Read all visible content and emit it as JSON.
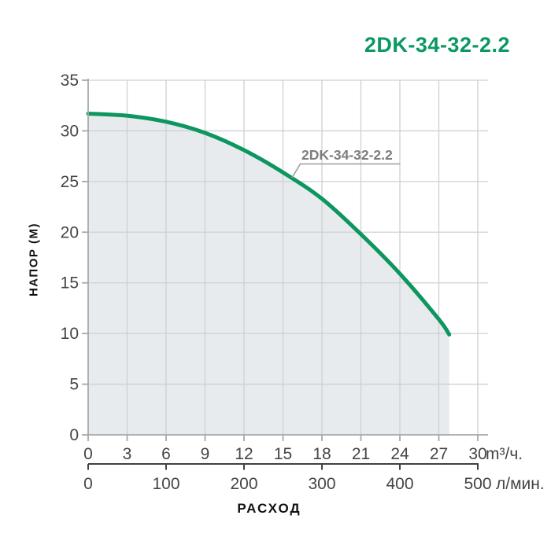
{
  "header": {
    "title": "2DK-34-32-2.2"
  },
  "colors": {
    "accent_green": "#0b9862",
    "curve_green": "#0d9660",
    "area_fill": "#e8ebed",
    "grid": "#cdd1d3",
    "axis": "#a6a9ab",
    "tick_label": "#454545",
    "secondary_axis": "#414141",
    "curve_label": "#7d7d7d",
    "leader_line": "#9c9ea0"
  },
  "chart_data": {
    "type": "area",
    "title": "2DK-34-32-2.2",
    "series_label": "2DK-34-32-2.2",
    "xlabel": "РАСХОД",
    "ylabel": "НАПОР (М)",
    "x_axis_primary": {
      "unit": "m³/ч.",
      "ticks": [
        0,
        3,
        6,
        9,
        12,
        15,
        18,
        21,
        24,
        27,
        30
      ]
    },
    "x_axis_secondary": {
      "unit": "л/мин.",
      "ticks": [
        0,
        100,
        200,
        300,
        400,
        500
      ]
    },
    "y_ticks": [
      0,
      5,
      10,
      15,
      20,
      25,
      30,
      35
    ],
    "xlim": [
      0,
      30
    ],
    "ylim": [
      0,
      35
    ],
    "grid": true,
    "points_m3h_vs_head_m": [
      [
        0,
        31.7
      ],
      [
        3,
        31.5
      ],
      [
        6,
        30.9
      ],
      [
        9,
        29.8
      ],
      [
        12,
        28.1
      ],
      [
        15,
        25.9
      ],
      [
        18,
        23.3
      ],
      [
        21,
        19.8
      ],
      [
        24,
        15.9
      ],
      [
        27,
        11.4
      ],
      [
        27.8,
        9.9
      ]
    ]
  }
}
